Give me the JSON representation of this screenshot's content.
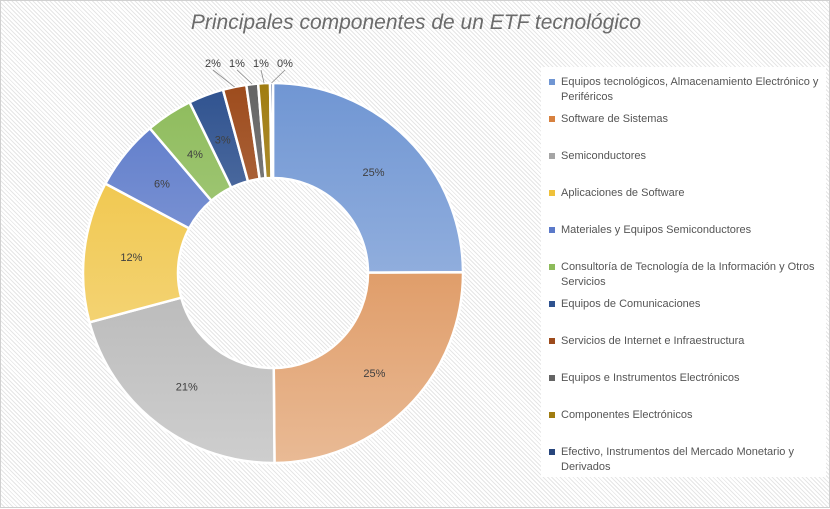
{
  "chart_data": {
    "type": "pie",
    "donut": true,
    "title": "Principales componentes de un ETF tecnológico",
    "legend_position": "right",
    "categories": [
      "Equipos tecnológicos, Almacenamiento Electrónico y Periféricos",
      "Software de Sistemas",
      "Semiconductores",
      "Aplicaciones de Software",
      "Materiales y Equipos Semiconductores",
      "Consultoría de Tecnología de la Información y Otros Servicios",
      "Equipos de Comunicaciones",
      "Servicios de Internet e Infraestructura",
      "Equipos e Instrumentos Electrónicos",
      "Componentes Electrónicos",
      "Efectivo, Instrumentos del Mercado Monetario y Derivados"
    ],
    "values": [
      25,
      25,
      21,
      12,
      6,
      4,
      3,
      2,
      1,
      1,
      0
    ],
    "data_labels": [
      "25%",
      "25%",
      "21%",
      "12%",
      "6%",
      "4%",
      "3%",
      "2%",
      "1%",
      "1%",
      "0%"
    ],
    "colors": [
      "#7096d3",
      "#d7813f",
      "#a5a5a5",
      "#efc13a",
      "#5b79c9",
      "#8dbb5a",
      "#2f528f",
      "#9d4b1c",
      "#646464",
      "#a07c10",
      "#27457c"
    ]
  }
}
